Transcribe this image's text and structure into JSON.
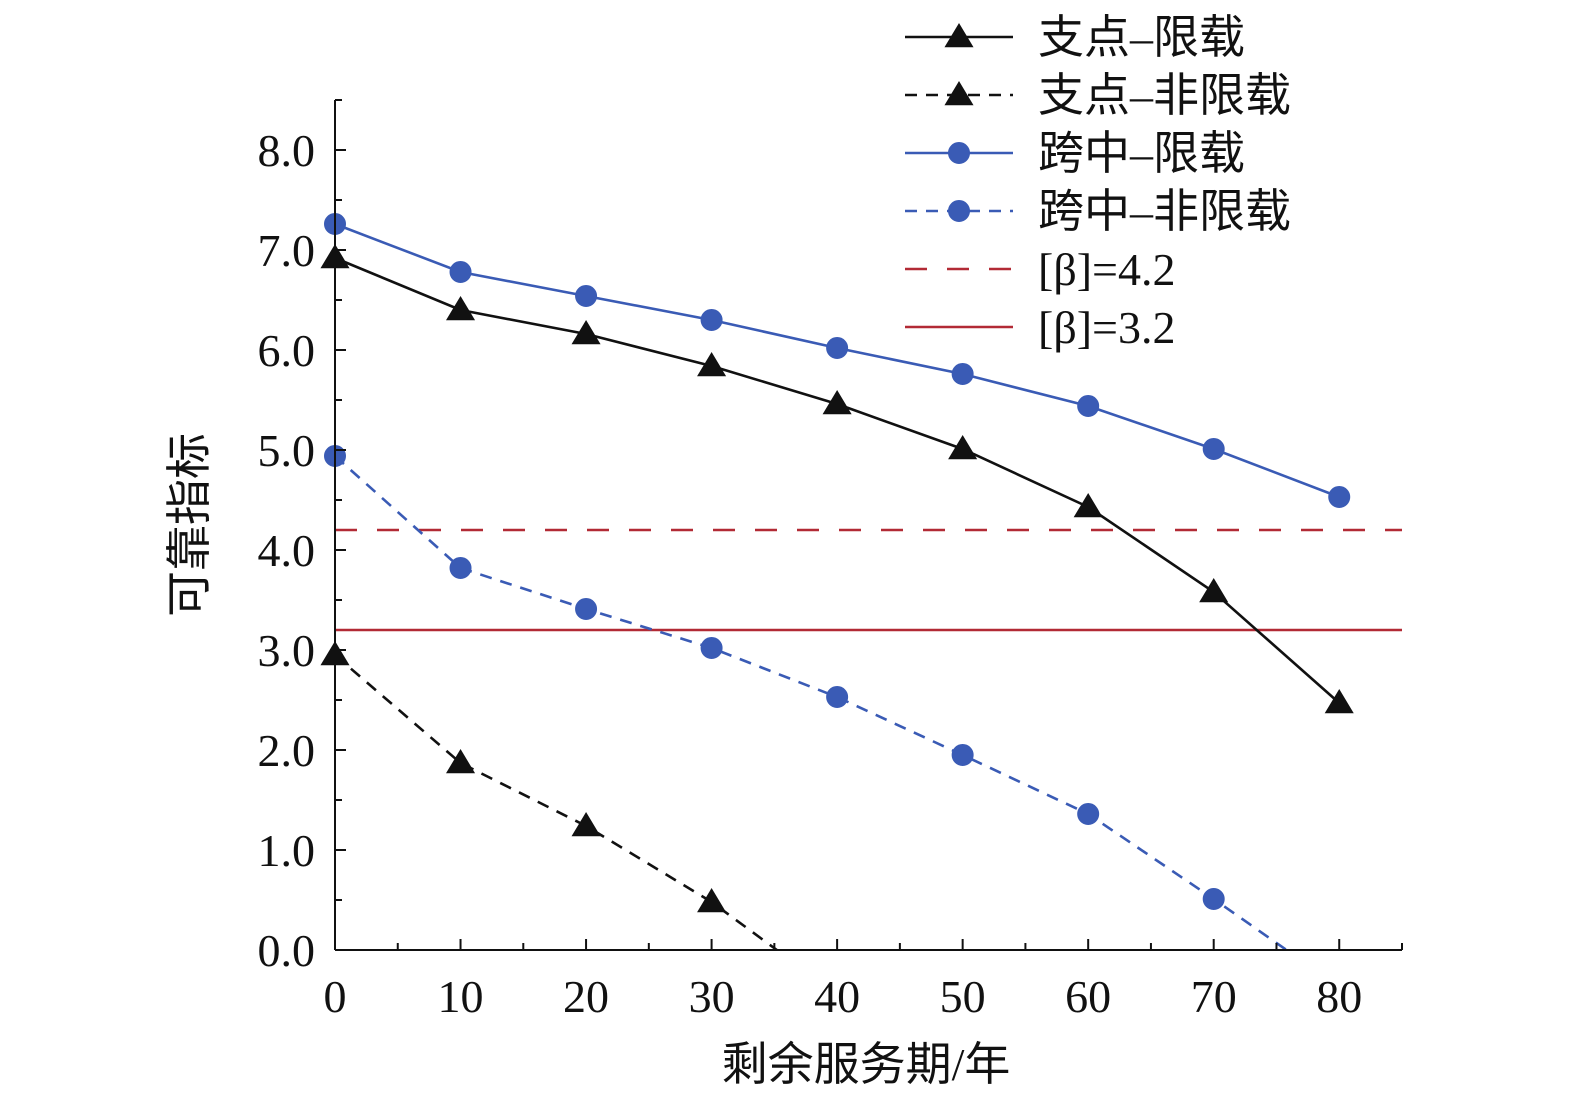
{
  "chart_data": {
    "type": "line",
    "title": "",
    "xlabel": "剩余服务期/年",
    "ylabel": "可靠指标",
    "xlim": [
      0,
      85
    ],
    "ylim": [
      0,
      8.5
    ],
    "x_ticks": [
      0,
      10,
      20,
      30,
      40,
      50,
      60,
      70,
      80
    ],
    "x_tick_labels": [
      "0",
      "10",
      "20",
      "30",
      "40",
      "50",
      "60",
      "70",
      "80"
    ],
    "y_ticks": [
      0,
      1,
      2,
      3,
      4,
      5,
      6,
      7,
      8
    ],
    "y_tick_labels": [
      "0.0",
      "1.0",
      "2.0",
      "3.0",
      "4.0",
      "5.0",
      "6.0",
      "7.0",
      "8.0"
    ],
    "grid": false,
    "legend_position": "top-right",
    "series": [
      {
        "name": "支点–限载",
        "color": "#111111",
        "line_style": "solid",
        "marker": "triangle",
        "x": [
          0,
          10,
          20,
          30,
          40,
          50,
          60,
          70,
          80
        ],
        "y": [
          6.92,
          6.4,
          6.16,
          5.84,
          5.46,
          5.01,
          4.43,
          3.58,
          2.47
        ]
      },
      {
        "name": "支点–非限载",
        "color": "#111111",
        "line_style": "dashed",
        "marker": "triangle",
        "x": [
          0,
          10,
          20,
          30,
          35.2
        ],
        "y": [
          2.95,
          1.87,
          1.24,
          0.48,
          0.0
        ]
      },
      {
        "name": "跨中–限载",
        "color": "#3a5bb5",
        "line_style": "solid",
        "marker": "circle",
        "x": [
          0,
          10,
          20,
          30,
          40,
          50,
          60,
          70,
          80
        ],
        "y": [
          7.26,
          6.78,
          6.54,
          6.3,
          6.02,
          5.76,
          5.44,
          5.01,
          4.53
        ]
      },
      {
        "name": "跨中–非限载",
        "color": "#3a5bb5",
        "line_style": "dashed",
        "marker": "circle",
        "x": [
          0,
          10,
          20,
          30,
          40,
          50,
          60,
          70,
          75.8
        ],
        "y": [
          4.94,
          3.82,
          3.41,
          3.02,
          2.53,
          1.95,
          1.36,
          0.51,
          0.0
        ]
      },
      {
        "name": "[β]=4.2",
        "color": "#b22a35",
        "line_style": "dashed",
        "marker": "none",
        "x": [
          0,
          85
        ],
        "y": [
          4.2,
          4.2
        ]
      },
      {
        "name": "[β]=3.2",
        "color": "#b22a35",
        "line_style": "solid",
        "marker": "none",
        "x": [
          0,
          85
        ],
        "y": [
          3.2,
          3.2
        ]
      }
    ]
  }
}
